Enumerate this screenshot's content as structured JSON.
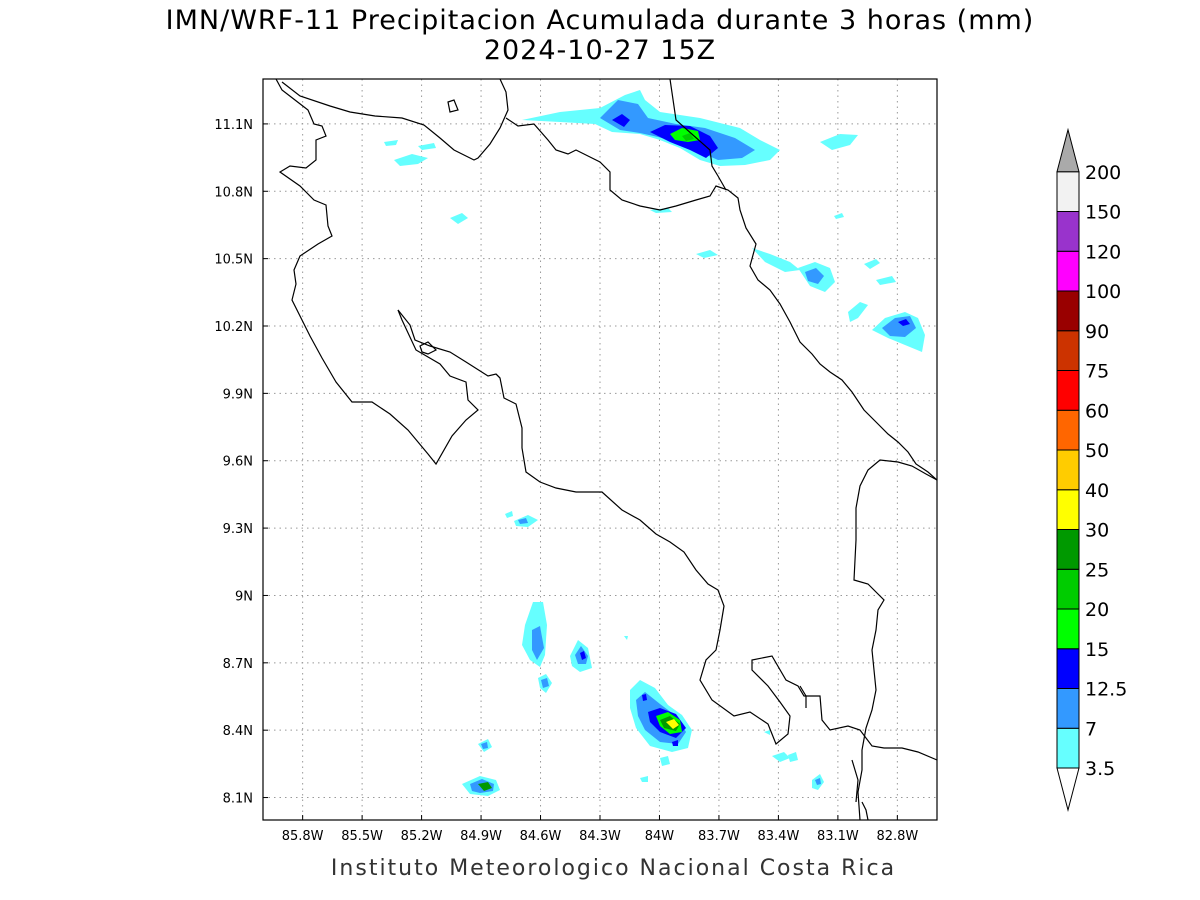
{
  "title_line1": "IMN/WRF-11 Precipitacion Acumulada durante 3 horas (mm)",
  "title_line2": "2024-10-27 15Z",
  "footer": "Instituto Meteorologico Nacional Costa Rica",
  "map": {
    "lon_range": [
      -86.0,
      -82.6
    ],
    "lat_range": [
      8.0,
      11.3
    ],
    "x_ticks": [
      "85.8W",
      "85.5W",
      "85.2W",
      "84.9W",
      "84.6W",
      "84.3W",
      "84W",
      "83.7W",
      "83.4W",
      "83.1W",
      "82.8W"
    ],
    "y_ticks": [
      "11.1N",
      "10.8N",
      "10.5N",
      "10.2N",
      "9.9N",
      "9.6N",
      "9.3N",
      "9N",
      "8.7N",
      "8.4N",
      "8.1N"
    ],
    "grid": "dotted"
  },
  "legend": {
    "levels": [
      "3.5",
      "7",
      "12.5",
      "15",
      "20",
      "25",
      "30",
      "40",
      "50",
      "60",
      "75",
      "90",
      "100",
      "120",
      "150",
      "200"
    ],
    "colors": [
      "#66ffff",
      "#3399ff",
      "#0000ff",
      "#00ff00",
      "#00cc00",
      "#009900",
      "#ffff00",
      "#ffcc00",
      "#ff6600",
      "#ff0000",
      "#cc3300",
      "#990000",
      "#ff00ff",
      "#9933cc",
      "#f2f2f2",
      "#aaaaaa"
    ]
  }
}
